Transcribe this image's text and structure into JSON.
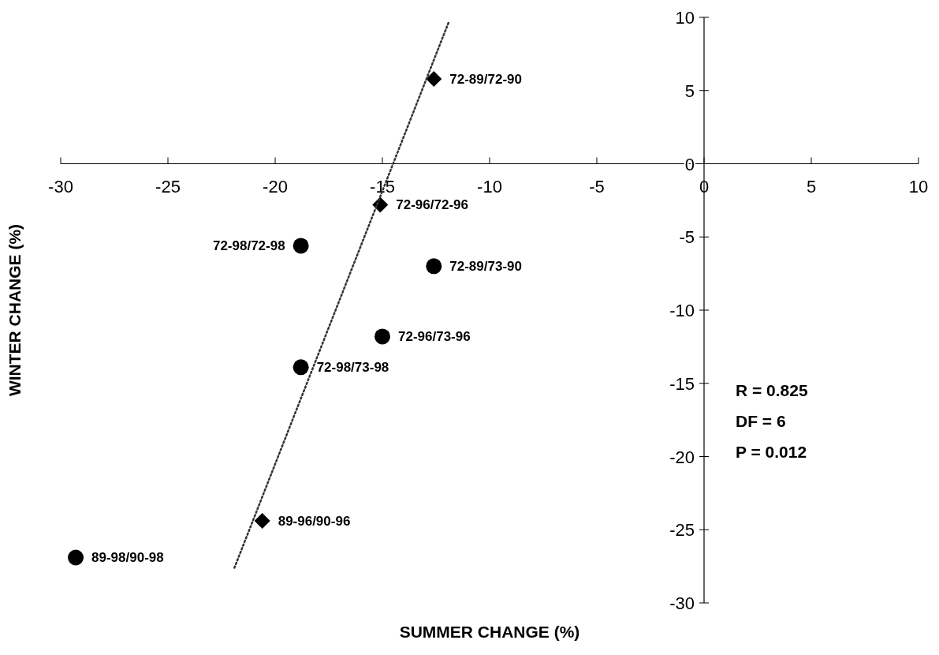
{
  "chart_data": {
    "type": "scatter",
    "xlabel": "SUMMER CHANGE (%)",
    "ylabel": "WINTER CHANGE (%)",
    "xlim": [
      -30,
      10
    ],
    "xticks": [
      -30,
      -25,
      -20,
      -15,
      -10,
      -5,
      0,
      5,
      10
    ],
    "ylim": [
      -30,
      10
    ],
    "yticks": [
      -30,
      -25,
      -20,
      -15,
      -10,
      -5,
      0,
      5,
      10
    ],
    "grid": false,
    "series": [
      {
        "marker": "circle",
        "color": "#000000",
        "x": [
          -18.8,
          -12.6,
          -15.0,
          -18.8,
          -29.3
        ],
        "values": [
          -5.6,
          -7.0,
          -11.8,
          -13.9,
          -26.9
        ]
      },
      {
        "marker": "diamond",
        "color": "#000000",
        "x": [
          -12.6,
          -15.1,
          -20.6
        ],
        "values": [
          5.8,
          -2.8,
          -24.4
        ]
      },
      {
        "type": "line",
        "line_style": "dotted",
        "marker": "none",
        "color": "#333333",
        "x": [
          -21.9,
          -11.9
        ],
        "values": [
          -27.6,
          9.7
        ]
      }
    ],
    "annotations": [
      {
        "text": "72-89/72-90",
        "x": -12.6,
        "y": 5.8
      },
      {
        "text": "72-96/72-96",
        "x": -15.1,
        "y": -2.8
      },
      {
        "text": "72-98/72-98",
        "x": -18.8,
        "y": -5.6
      },
      {
        "text": "72-89/73-90",
        "x": -12.6,
        "y": -7.0
      },
      {
        "text": "72-96/73-96",
        "x": -15.0,
        "y": -11.8
      },
      {
        "text": "72-98/73-98",
        "x": -18.8,
        "y": -13.9
      },
      {
        "text": "89-96/90-96",
        "x": -20.6,
        "y": -24.4
      },
      {
        "text": "89-98/90-98",
        "x": -29.3,
        "y": -26.9
      },
      "R = 0.825",
      "DF = 6",
      "P = 0.012"
    ]
  }
}
